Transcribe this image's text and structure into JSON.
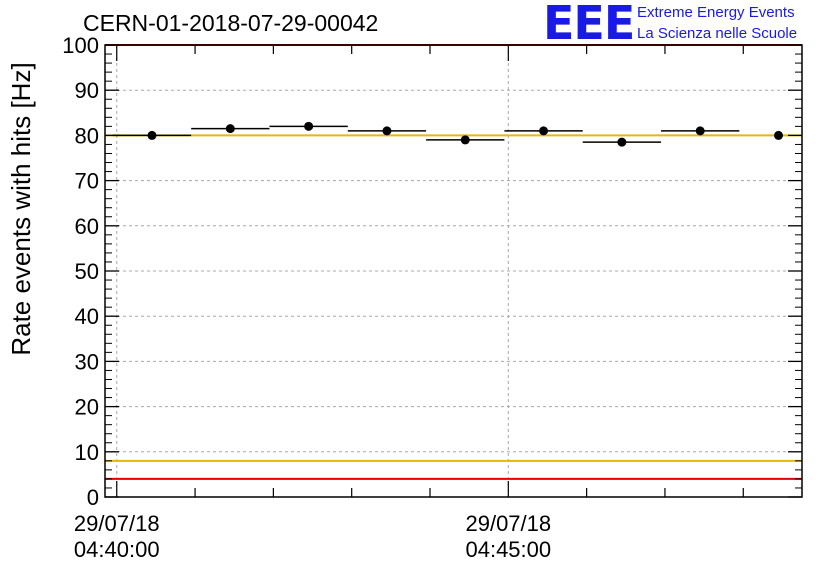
{
  "header": {
    "title": "CERN-01-2018-07-29-00042",
    "logo_mark": "EEE",
    "logo_line1": "Extreme Energy Events",
    "logo_line2": "La Scienza nelle Scuole"
  },
  "chart_data": {
    "type": "scatter",
    "title": "CERN-01-2018-07-29-00042",
    "ylabel": "Rate events with hits [Hz]",
    "xlabel": "",
    "ylim": [
      0,
      100
    ],
    "xlim_minutes": [
      -0.15,
      8.75
    ],
    "yticks": [
      0,
      10,
      20,
      30,
      40,
      50,
      60,
      70,
      80,
      90,
      100
    ],
    "xticks": [
      {
        "minute": 0,
        "date": "29/07/18",
        "time": "04:40:00"
      },
      {
        "minute": 5,
        "date": "29/07/18",
        "time": "04:45:00"
      }
    ],
    "grid": true,
    "points": [
      {
        "x_minute": 0.45,
        "half_width": 0.5,
        "y": 80.0,
        "err": 0.8
      },
      {
        "x_minute": 1.45,
        "half_width": 0.5,
        "y": 81.5,
        "err": 0.8
      },
      {
        "x_minute": 2.45,
        "half_width": 0.5,
        "y": 82.0,
        "err": 0.8
      },
      {
        "x_minute": 3.45,
        "half_width": 0.5,
        "y": 81.0,
        "err": 0.8
      },
      {
        "x_minute": 4.45,
        "half_width": 0.5,
        "y": 79.0,
        "err": 0.8
      },
      {
        "x_minute": 5.45,
        "half_width": 0.5,
        "y": 81.0,
        "err": 0.8
      },
      {
        "x_minute": 6.45,
        "half_width": 0.5,
        "y": 78.5,
        "err": 0.8
      },
      {
        "x_minute": 7.45,
        "half_width": 0.5,
        "y": 81.0,
        "err": 0.8
      },
      {
        "x_minute": 8.45,
        "half_width": 0.0,
        "y": 80.0,
        "err": 0.8
      }
    ],
    "reference_lines": [
      {
        "y": 100,
        "color": "#e60000"
      },
      {
        "y": 80,
        "color": "#e6b800"
      },
      {
        "y": 8,
        "color": "#e6b800"
      },
      {
        "y": 4,
        "color": "#e60000"
      }
    ],
    "colors": {
      "markers": "#000000",
      "grid": "#a8a8a8"
    }
  }
}
